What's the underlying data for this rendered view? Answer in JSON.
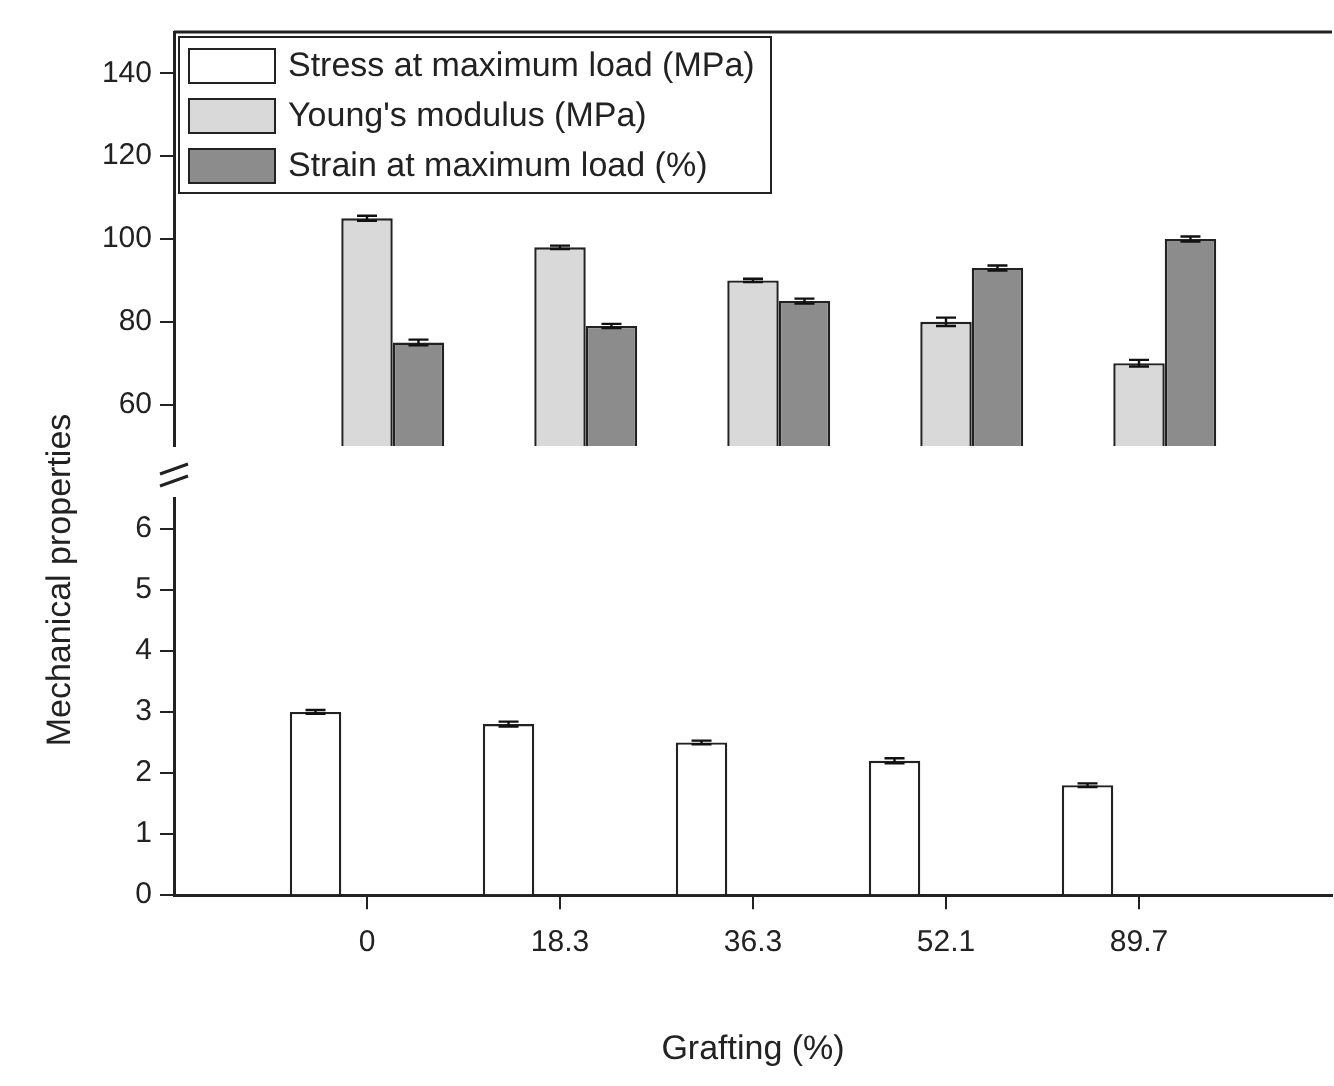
{
  "chart_data": [
    {
      "type": "bar",
      "categories": [
        "0",
        "18.3",
        "36.3",
        "52.1",
        "89.7"
      ],
      "ylim": [
        50,
        150
      ],
      "yticks": [
        60,
        80,
        100,
        120,
        140
      ],
      "tick_labels": "y",
      "legend": "top left",
      "grid": false,
      "series": [
        {
          "name": "Stress at maximum load (MPa)",
          "color": "#ffffff",
          "values": [
            null,
            null,
            null,
            null,
            null
          ]
        },
        {
          "name": "Young's modulus (MPa)",
          "color": "#d9d9d9",
          "values": [
            105,
            98,
            90,
            80,
            70
          ],
          "errors": [
            0.6,
            0.4,
            0.4,
            1,
            0.8
          ]
        },
        {
          "name": "Strain at maximum load (%)",
          "color": "#8c8c8c",
          "values": [
            75,
            79,
            85,
            93,
            100
          ],
          "errors": [
            0.7,
            0.5,
            0.6,
            0.6,
            0.6
          ]
        }
      ]
    },
    {
      "type": "bar",
      "categories": [
        "0",
        "18.3",
        "36.3",
        "52.1",
        "89.7"
      ],
      "ylim": [
        0,
        6.5
      ],
      "yticks": [
        0,
        1,
        2,
        3,
        4,
        5,
        6
      ],
      "xlabel": "Grafting (%)",
      "ylabel": "Mechanical properties",
      "grid": false,
      "series": [
        {
          "color": "#ffffff",
          "values": [
            3.0,
            2.8,
            2.5,
            2.2,
            1.8
          ],
          "errors": [
            0.03,
            0.04,
            0.03,
            0.04,
            0.03
          ]
        },
        {
          "color": "#d9d9d9",
          "values": [
            null,
            null,
            null,
            null,
            null
          ]
        },
        {
          "color": "#8c8c8c",
          "values": [
            null,
            null,
            null,
            null,
            null
          ]
        }
      ]
    }
  ]
}
